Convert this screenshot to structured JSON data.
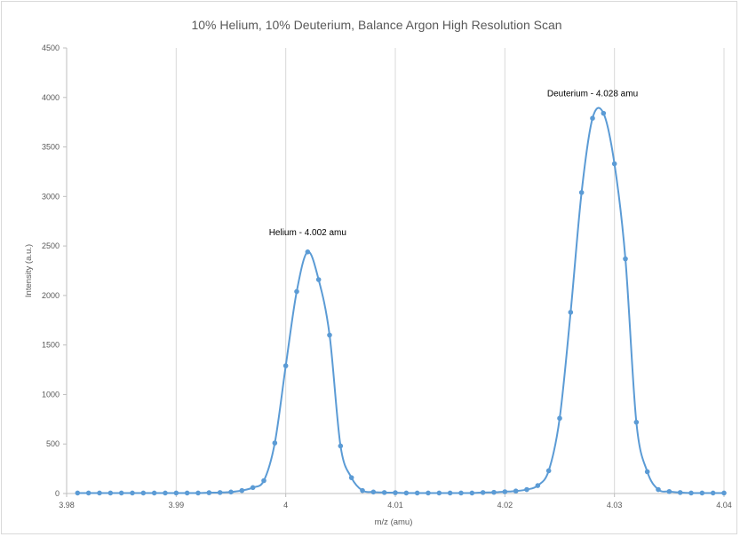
{
  "chart_data": {
    "type": "scatter",
    "title": "10% Helium, 10% Deuterium, Balance Argon High Resolution Scan",
    "xlabel": "m/z (amu)",
    "ylabel": "Intensity (a.u.)",
    "xlim": [
      3.98,
      4.04
    ],
    "ylim": [
      0,
      4500
    ],
    "x_ticks": [
      3.98,
      3.99,
      4.0,
      4.01,
      4.02,
      4.03,
      4.04
    ],
    "x_tick_labels": [
      "3.98",
      "3.99",
      "4",
      "4.01",
      "4.02",
      "4.03",
      "4.04"
    ],
    "y_ticks": [
      0,
      500,
      1000,
      1500,
      2000,
      2500,
      3000,
      3500,
      4000,
      4500
    ],
    "y_tick_labels": [
      "0",
      "500",
      "1000",
      "1500",
      "2000",
      "2500",
      "3000",
      "3500",
      "4000",
      "4500"
    ],
    "grid": "vertical",
    "legend": "none",
    "series": [
      {
        "color": "#5B9BD5",
        "line": "smooth",
        "marker": "circle",
        "x": [
          3.981,
          3.982,
          3.983,
          3.984,
          3.985,
          3.986,
          3.987,
          3.988,
          3.989,
          3.99,
          3.991,
          3.992,
          3.993,
          3.994,
          3.995,
          3.996,
          3.997,
          3.998,
          3.999,
          4.0,
          4.001,
          4.002,
          4.003,
          4.004,
          4.005,
          4.006,
          4.007,
          4.008,
          4.009,
          4.01,
          4.011,
          4.012,
          4.013,
          4.014,
          4.015,
          4.016,
          4.017,
          4.018,
          4.019,
          4.02,
          4.021,
          4.022,
          4.023,
          4.024,
          4.025,
          4.026,
          4.027,
          4.028,
          4.029,
          4.03,
          4.031,
          4.032,
          4.033,
          4.034,
          4.035,
          4.036,
          4.037,
          4.038,
          4.039,
          4.04
        ],
        "y": [
          5,
          5,
          5,
          5,
          5,
          5,
          5,
          5,
          5,
          5,
          5,
          5,
          8,
          10,
          15,
          30,
          60,
          130,
          510,
          1290,
          2040,
          2440,
          2160,
          1600,
          480,
          160,
          30,
          15,
          10,
          8,
          5,
          5,
          5,
          5,
          5,
          5,
          5,
          10,
          12,
          18,
          25,
          40,
          80,
          230,
          760,
          1830,
          3040,
          3790,
          3840,
          3330,
          2370,
          720,
          220,
          40,
          20,
          10,
          5,
          5,
          5,
          5
        ]
      }
    ],
    "annotations": [
      {
        "text": "Helium - 4.002 amu",
        "x": 4.002,
        "y": 2440
      },
      {
        "text": "Deuterium - 4.028 amu",
        "x": 4.028,
        "y": 3840
      }
    ]
  }
}
